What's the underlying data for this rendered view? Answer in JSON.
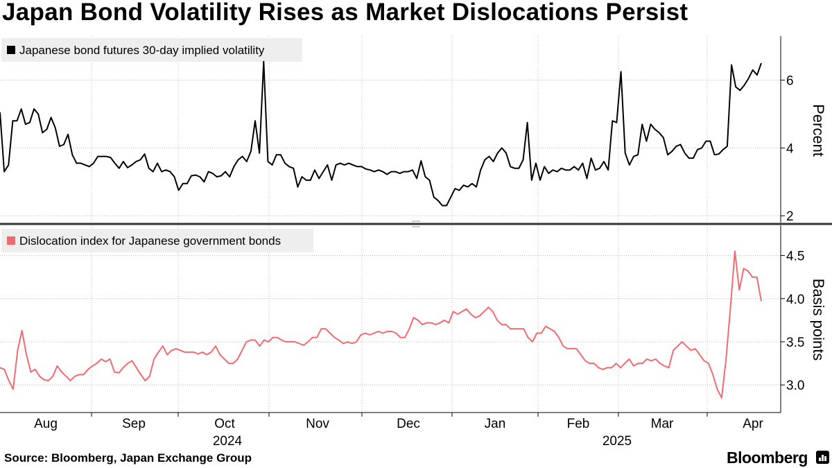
{
  "title": "Japan Bond Volatility Rises as Market Dislocations Persist",
  "source": "Source: Bloomberg, Japan Exchange Group",
  "brand": "Bloomberg",
  "brand_icon": "bloomberg-terminal-icon",
  "colors": {
    "volatility": "#000000",
    "dislocation": "#f06a6f",
    "grid": "#b8b8b8",
    "legend_bg": "#eeeeee",
    "divider": "#333333"
  },
  "chart_data": [
    {
      "type": "line",
      "legend": "Japanese bond futures 30-day implied volatility",
      "ylabel": "Percent",
      "ylim": [
        1.8,
        7.3
      ],
      "yticks": [
        2,
        4,
        6
      ],
      "series": [
        {
          "name": "Japanese bond futures 30-day implied volatility",
          "x_start": "2024-07-15",
          "x_end": "2025-04-08",
          "values": [
            5.05,
            3.3,
            3.5,
            4.8,
            4.8,
            5.15,
            4.7,
            4.75,
            5.15,
            5.0,
            4.45,
            4.55,
            4.9,
            4.6,
            4.05,
            4.1,
            4.4,
            3.8,
            3.55,
            3.55,
            3.5,
            3.45,
            3.55,
            3.75,
            3.75,
            3.75,
            3.72,
            3.55,
            3.4,
            3.6,
            3.42,
            3.5,
            3.6,
            3.65,
            3.82,
            3.4,
            3.3,
            3.55,
            3.3,
            3.35,
            3.3,
            3.15,
            2.75,
            2.95,
            2.95,
            3.18,
            3.2,
            3.15,
            3.0,
            3.3,
            3.25,
            3.15,
            3.18,
            3.3,
            3.15,
            3.45,
            3.65,
            3.75,
            3.6,
            3.9,
            4.8,
            3.85,
            6.55,
            3.6,
            3.5,
            3.8,
            3.8,
            3.55,
            3.45,
            3.4,
            2.85,
            3.15,
            3.05,
            3.05,
            3.35,
            3.1,
            3.3,
            3.5,
            3.05,
            3.5,
            3.55,
            3.5,
            3.55,
            3.5,
            3.45,
            3.45,
            3.38,
            3.35,
            3.3,
            3.35,
            3.3,
            3.22,
            3.3,
            3.3,
            3.25,
            3.3,
            3.3,
            3.35,
            3.1,
            3.62,
            3.15,
            3.05,
            2.55,
            2.45,
            2.3,
            2.3,
            2.55,
            2.8,
            2.75,
            2.9,
            2.85,
            2.95,
            2.85,
            3.35,
            3.65,
            3.75,
            3.6,
            3.85,
            4.0,
            3.85,
            3.45,
            3.4,
            3.4,
            3.65,
            4.75,
            3.05,
            3.55,
            3.05,
            3.45,
            3.25,
            3.35,
            3.3,
            3.4,
            3.35,
            3.35,
            3.45,
            3.35,
            3.55,
            3.1,
            3.7,
            3.35,
            3.4,
            3.6,
            3.35,
            4.8,
            4.75,
            6.25,
            3.85,
            3.5,
            3.75,
            3.8,
            4.7,
            4.2,
            4.7,
            4.55,
            4.45,
            4.3,
            3.8,
            3.9,
            4.05,
            4.1,
            3.85,
            3.7,
            3.7,
            3.95,
            4.0,
            4.2,
            4.2,
            3.8,
            3.82,
            3.95,
            4.05,
            6.45,
            5.8,
            5.7,
            5.85,
            6.05,
            6.3,
            6.15,
            6.5
          ]
        }
      ]
    },
    {
      "type": "line",
      "legend": "Dislocation index for Japanese government bonds",
      "ylabel": "Basis points",
      "ylim": [
        2.68,
        4.85
      ],
      "yticks": [
        "3.0",
        "3.5",
        "4.0",
        "4.5"
      ],
      "series": [
        {
          "name": "Dislocation index for Japanese government bonds",
          "x_start": "2024-07-15",
          "x_end": "2025-04-08",
          "values": [
            3.2,
            3.18,
            3.05,
            2.95,
            3.4,
            3.63,
            3.35,
            3.15,
            3.18,
            3.1,
            3.06,
            3.05,
            3.1,
            3.22,
            3.15,
            3.1,
            3.05,
            3.1,
            3.12,
            3.12,
            3.18,
            3.22,
            3.25,
            3.3,
            3.27,
            3.3,
            3.15,
            3.14,
            3.2,
            3.25,
            3.28,
            3.2,
            3.12,
            3.05,
            3.1,
            3.3,
            3.38,
            3.45,
            3.35,
            3.4,
            3.42,
            3.4,
            3.38,
            3.38,
            3.38,
            3.36,
            3.38,
            3.35,
            3.38,
            3.45,
            3.35,
            3.3,
            3.25,
            3.25,
            3.3,
            3.4,
            3.5,
            3.52,
            3.52,
            3.45,
            3.52,
            3.5,
            3.55,
            3.55,
            3.52,
            3.5,
            3.5,
            3.5,
            3.48,
            3.46,
            3.5,
            3.55,
            3.55,
            3.65,
            3.65,
            3.6,
            3.55,
            3.52,
            3.48,
            3.5,
            3.48,
            3.5,
            3.58,
            3.6,
            3.58,
            3.6,
            3.62,
            3.6,
            3.62,
            3.62,
            3.6,
            3.55,
            3.55,
            3.65,
            3.78,
            3.75,
            3.7,
            3.72,
            3.72,
            3.7,
            3.72,
            3.75,
            3.72,
            3.85,
            3.82,
            3.85,
            3.88,
            3.82,
            3.78,
            3.8,
            3.85,
            3.9,
            3.85,
            3.75,
            3.7,
            3.7,
            3.65,
            3.65,
            3.65,
            3.65,
            3.55,
            3.5,
            3.6,
            3.6,
            3.68,
            3.65,
            3.62,
            3.55,
            3.45,
            3.42,
            3.42,
            3.42,
            3.35,
            3.28,
            3.25,
            3.25,
            3.2,
            3.18,
            3.2,
            3.2,
            3.25,
            3.2,
            3.25,
            3.3,
            3.22,
            3.25,
            3.25,
            3.3,
            3.28,
            3.3,
            3.25,
            3.22,
            3.2,
            3.4,
            3.45,
            3.5,
            3.45,
            3.4,
            3.42,
            3.35,
            3.28,
            3.25,
            3.12,
            2.95,
            2.85,
            3.3,
            3.9,
            4.55,
            4.1,
            4.35,
            4.32,
            4.25,
            4.25,
            3.97
          ]
        }
      ]
    }
  ],
  "x_axis": {
    "labels": [
      "Aug",
      "Sep",
      "Oct",
      "Nov",
      "Dec",
      "Jan",
      "Feb",
      "Mar",
      "Apr"
    ],
    "years": [
      "2024",
      "2025"
    ]
  }
}
